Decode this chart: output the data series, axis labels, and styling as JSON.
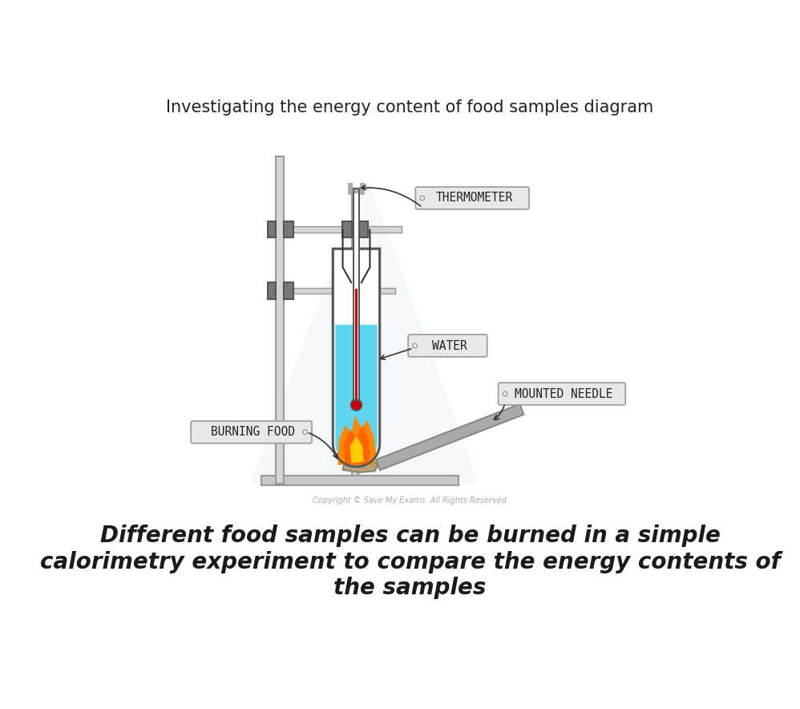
{
  "title": "Investigating the energy content of food samples diagram",
  "title_fontsize": 15,
  "title_color": "#222222",
  "subtitle_line1": "Different food samples can be burned in a simple",
  "subtitle_line2": "calorimetry experiment to compare the energy contents of",
  "subtitle_line3": "the samples",
  "subtitle_fontsize": 20,
  "subtitle_color": "#1a1a1a",
  "copyright_text": "Copyright © Save My Exams. All Rights Reserved",
  "background_color": "#ffffff",
  "label_thermometer": "THERMOMETER",
  "label_water": "WATER",
  "label_mounted_needle": "MOUNTED NEEDLE",
  "label_burning_food": "BURNING FOOD",
  "water_color": "#5dd4f0",
  "stand_color": "#c8c8c8",
  "clamp_color": "#777777",
  "rod_color": "#d5d5d5",
  "thermometer_liquid_color": "#cc0000",
  "flame_orange": "#ff8800",
  "flame_orange2": "#ff5500",
  "flame_yellow": "#ffcc00",
  "food_color": "#b8a080",
  "food_edge": "#888866",
  "needle_color": "#aaaaaa",
  "needle_edge": "#888888",
  "label_box_color": "#e8e8e8",
  "label_box_edge": "#999999",
  "shadow_color": "#e8f0f8"
}
